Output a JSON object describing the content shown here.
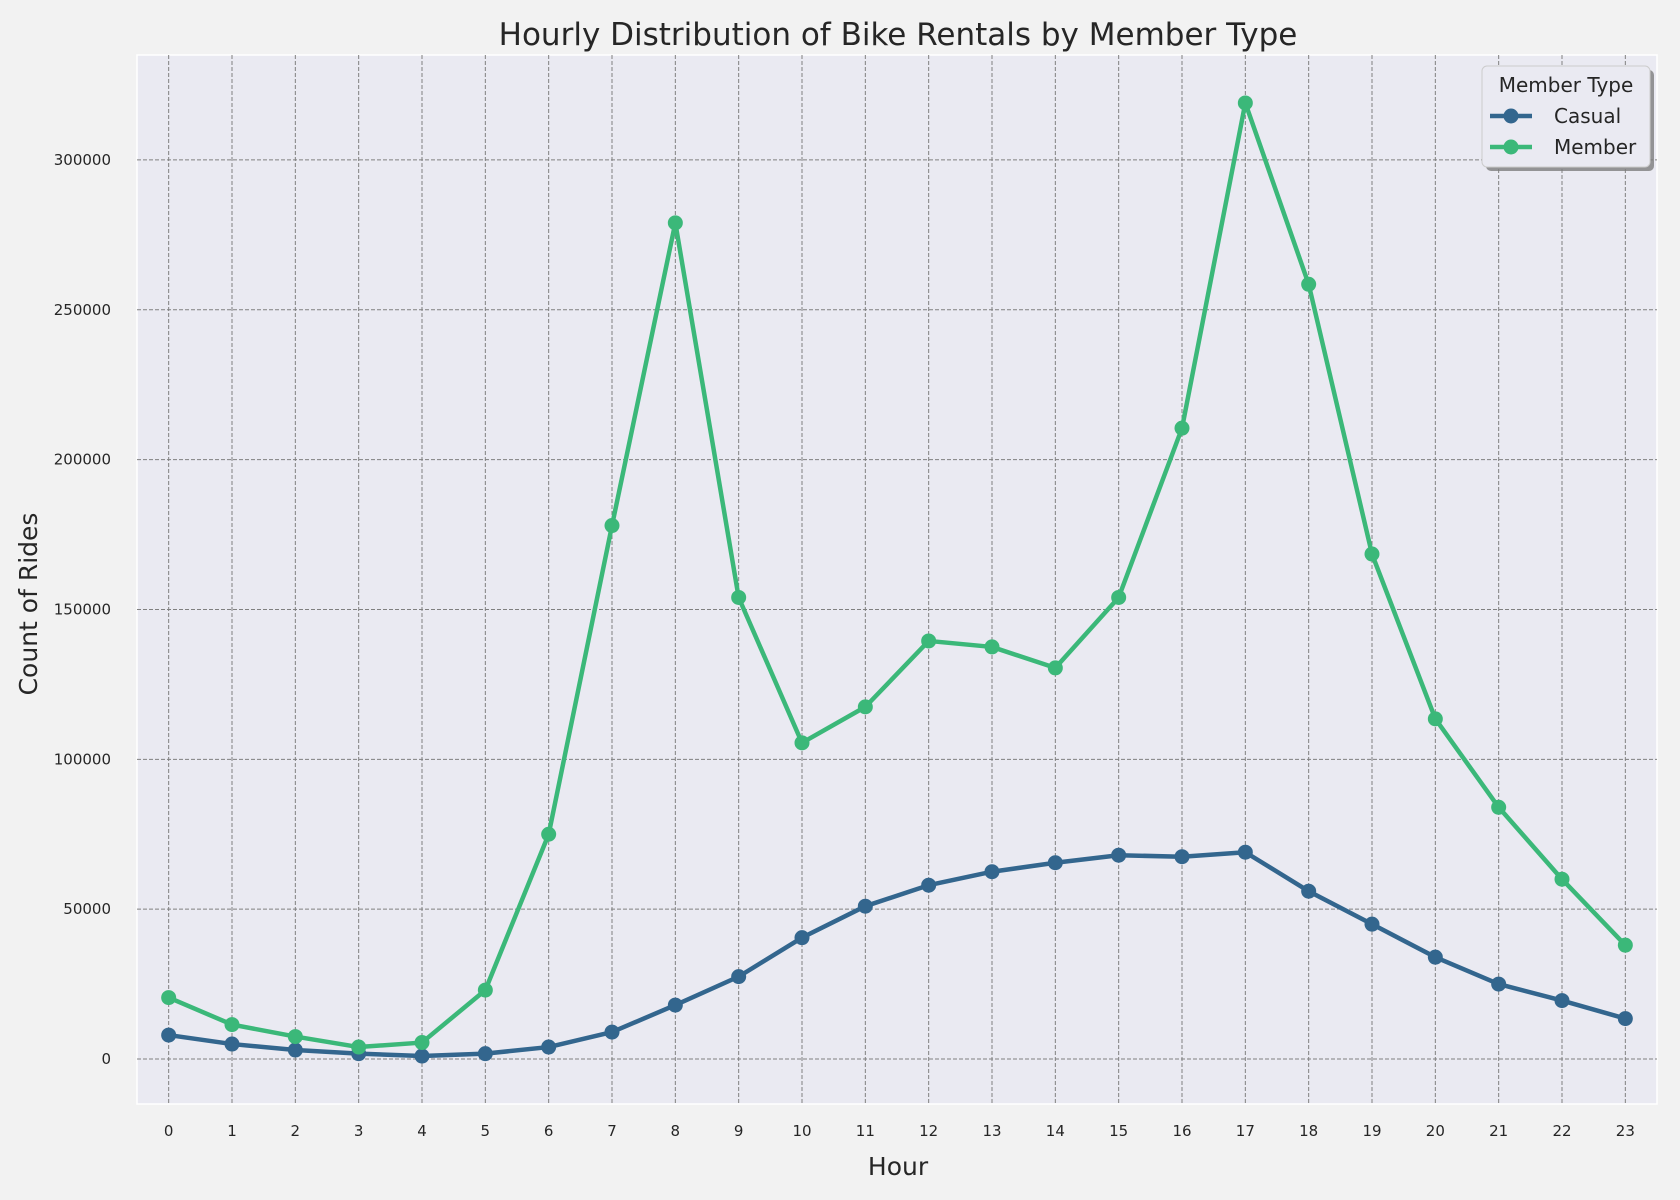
{
  "chart_data": {
    "type": "line",
    "title": "Hourly Distribution of Bike Rentals by Member Type",
    "xlabel": "Hour",
    "ylabel": "Count of Rides",
    "x": [
      0,
      1,
      2,
      3,
      4,
      5,
      6,
      7,
      8,
      9,
      10,
      11,
      12,
      13,
      14,
      15,
      16,
      17,
      18,
      19,
      20,
      21,
      22,
      23
    ],
    "ylim": [
      -15000,
      335000
    ],
    "yticks": [
      0,
      50000,
      100000,
      150000,
      200000,
      250000,
      300000
    ],
    "grid": true,
    "legend": {
      "title": "Member Type",
      "placement": "top-right"
    },
    "series": [
      {
        "name": "Casual",
        "color": "#33668e",
        "values": [
          8000,
          5000,
          3000,
          1800,
          1000,
          1800,
          4000,
          9000,
          18000,
          27500,
          40500,
          51000,
          58000,
          62500,
          65500,
          68000,
          67500,
          69000,
          56000,
          45000,
          34000,
          25000,
          19500,
          13500
        ]
      },
      {
        "name": "Member",
        "color": "#3bb879",
        "values": [
          20500,
          11500,
          7500,
          4000,
          5500,
          23000,
          75000,
          178000,
          279000,
          154000,
          105500,
          117500,
          139500,
          137500,
          130500,
          154000,
          210500,
          319000,
          258500,
          168500,
          113500,
          84000,
          60000,
          38000
        ]
      }
    ]
  }
}
